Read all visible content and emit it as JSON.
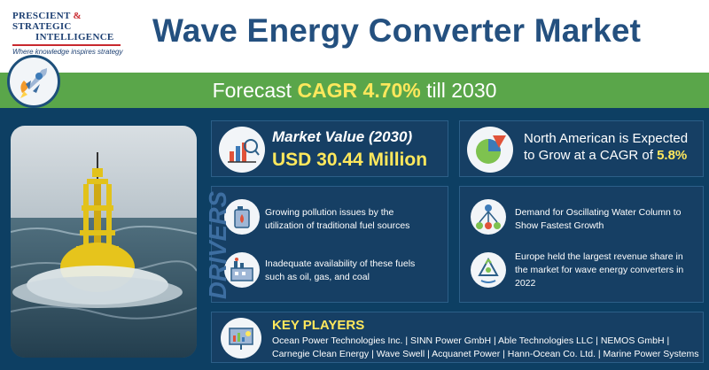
{
  "brand": {
    "logo_line1_part1": "PRESCIENT",
    "logo_amp": "&",
    "logo_line1_part2": "STRATEGIC",
    "logo_line2": "INTELLIGENCE",
    "tagline": "Where knowledge inspires strategy"
  },
  "title": "Wave Energy Converter Market",
  "forecast": {
    "prefix": "Forecast",
    "highlight": "CAGR 4.70%",
    "suffix": "till 2030"
  },
  "market_value": {
    "label": "Market Value (2030)",
    "value": "USD 30.44 Million"
  },
  "north_america": {
    "text": "North American is Expected to Grow at a CAGR of",
    "highlight": "5.8%"
  },
  "drivers": {
    "heading": "DRIVERS",
    "items": [
      "Growing pollution issues by the utilization of traditional fuel sources",
      "Inadequate availability of these fuels such as oil, gas, and coal"
    ]
  },
  "facts": [
    "Demand for Oscillating Water Column to Show Fastest Growth",
    "Europe held the largest revenue share in the market for wave energy converters in 2022"
  ],
  "key_players": {
    "title": "KEY PLAYERS",
    "line1": "Ocean Power Technologies Inc. | SINN Power GmbH | Able Technologies LLC | NEMOS GmbH |",
    "line2": "Carnegie Clean Energy | Wave Swell | Acquanet Power | Hann-Ocean Co. Ltd. | Marine Power Systems"
  },
  "colors": {
    "navy": "#0d3f63",
    "panel": "#163f64",
    "accent_green": "#5aa64a",
    "highlight_yellow": "#ffe85c",
    "title_blue": "#24507f",
    "brand_red": "#c8282e"
  },
  "icons": [
    "rocket-icon",
    "market-value-icon",
    "pie-chart-icon",
    "fuel-can-icon",
    "factory-icon",
    "network-icon",
    "recycle-icon",
    "presentation-icon"
  ]
}
